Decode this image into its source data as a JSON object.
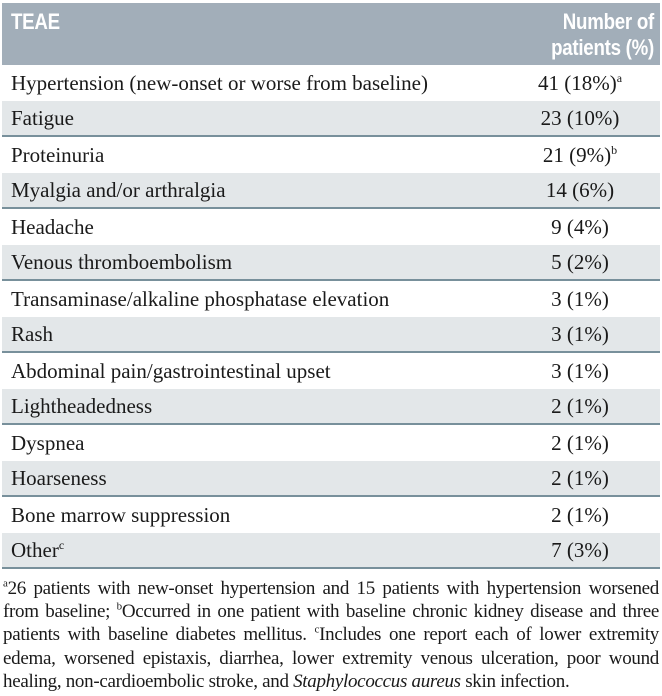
{
  "table": {
    "header": {
      "teae": "TEAE",
      "patients": "Number of patients (%)"
    },
    "rows": [
      {
        "label": "Hypertension (new-onset or worse from baseline)",
        "label_sup": "",
        "value": "41 (18%)",
        "value_sup": "a"
      },
      {
        "label": "Fatigue",
        "label_sup": "",
        "value": "23 (10%)",
        "value_sup": ""
      },
      {
        "label": "Proteinuria",
        "label_sup": "",
        "value": "21 (9%)",
        "value_sup": "b"
      },
      {
        "label": "Myalgia and/or arthralgia",
        "label_sup": "",
        "value": "14 (6%)",
        "value_sup": ""
      },
      {
        "label": "Headache",
        "label_sup": "",
        "value": "9 (4%)",
        "value_sup": ""
      },
      {
        "label": "Venous thromboembolism",
        "label_sup": "",
        "value": "5 (2%)",
        "value_sup": ""
      },
      {
        "label": "Transaminase/alkaline phosphatase elevation",
        "label_sup": "",
        "value": "3 (1%)",
        "value_sup": ""
      },
      {
        "label": "Rash",
        "label_sup": "",
        "value": "3 (1%)",
        "value_sup": ""
      },
      {
        "label": "Abdominal pain/gastrointestinal upset",
        "label_sup": "",
        "value": "3 (1%)",
        "value_sup": ""
      },
      {
        "label": "Lightheadedness",
        "label_sup": "",
        "value": "2 (1%)",
        "value_sup": ""
      },
      {
        "label": "Dyspnea",
        "label_sup": "",
        "value": "2 (1%)",
        "value_sup": ""
      },
      {
        "label": "Hoarseness",
        "label_sup": "",
        "value": "2 (1%)",
        "value_sup": ""
      },
      {
        "label": "Bone marrow suppression",
        "label_sup": "",
        "value": "2 (1%)",
        "value_sup": ""
      },
      {
        "label": "Other",
        "label_sup": "c",
        "value": "7 (3%)",
        "value_sup": ""
      }
    ],
    "footnotes": [
      {
        "marker": "a",
        "parts": [
          {
            "text": "26 patients with new-onset hypertension and 15 patients with hypertension worsened from baseline; ",
            "italic": false
          }
        ]
      },
      {
        "marker": "b",
        "parts": [
          {
            "text": "Occurred in one patient with baseline chronic kidney disease and three patients with baseline diabetes mellitus. ",
            "italic": false
          }
        ]
      },
      {
        "marker": "c",
        "parts": [
          {
            "text": "Includes one report each of lower extremity edema, worsened epistaxis, diarrhea, lower extremity venous ulceration, poor wound healing, non-cardioembolic stroke, and ",
            "italic": false
          },
          {
            "text": "Staphylococcus aureus",
            "italic": true
          },
          {
            "text": " skin infection.",
            "italic": false
          }
        ]
      }
    ]
  },
  "colors": {
    "header_bg": "#A2AEB9",
    "header_text": "#FFFFFF",
    "row_alt_bg": "#E3E7E9",
    "divider": "#78909B",
    "body_text": "#1A1A1A",
    "background": "#FFFFFF"
  },
  "chart_data": {
    "type": "table",
    "columns": [
      "TEAE",
      "Number of patients (%)"
    ],
    "rows": [
      [
        "Hypertension (new-onset or worse from baseline)",
        "41 (18%)ᵃ"
      ],
      [
        "Fatigue",
        "23 (10%)"
      ],
      [
        "Proteinuria",
        "21 (9%)ᵇ"
      ],
      [
        "Myalgia and/or arthralgia",
        "14 (6%)"
      ],
      [
        "Headache",
        "9 (4%)"
      ],
      [
        "Venous thromboembolism",
        "5 (2%)"
      ],
      [
        "Transaminase/alkaline phosphatase elevation",
        "3 (1%)"
      ],
      [
        "Rash",
        "3 (1%)"
      ],
      [
        "Abdominal pain/gastrointestinal upset",
        "3 (1%)"
      ],
      [
        "Lightheadedness",
        "2 (1%)"
      ],
      [
        "Dyspnea",
        "2 (1%)"
      ],
      [
        "Hoarseness",
        "2 (1%)"
      ],
      [
        "Bone marrow suppression",
        "2 (1%)"
      ],
      [
        "Otherᶜ",
        "7 (3%)"
      ]
    ],
    "notes": "ᵃ26 patients with new-onset hypertension and 15 patients with hypertension worsened from baseline; ᵇOccurred in one patient with baseline chronic kidney disease and three patients with baseline diabetes mellitus. ᶜIncludes one report each of lower extremity edema, worsened epistaxis, diarrhea, lower extremity venous ulceration, poor wound healing, non-cardioembolic stroke, and Staphylococcus aureus skin infection."
  }
}
